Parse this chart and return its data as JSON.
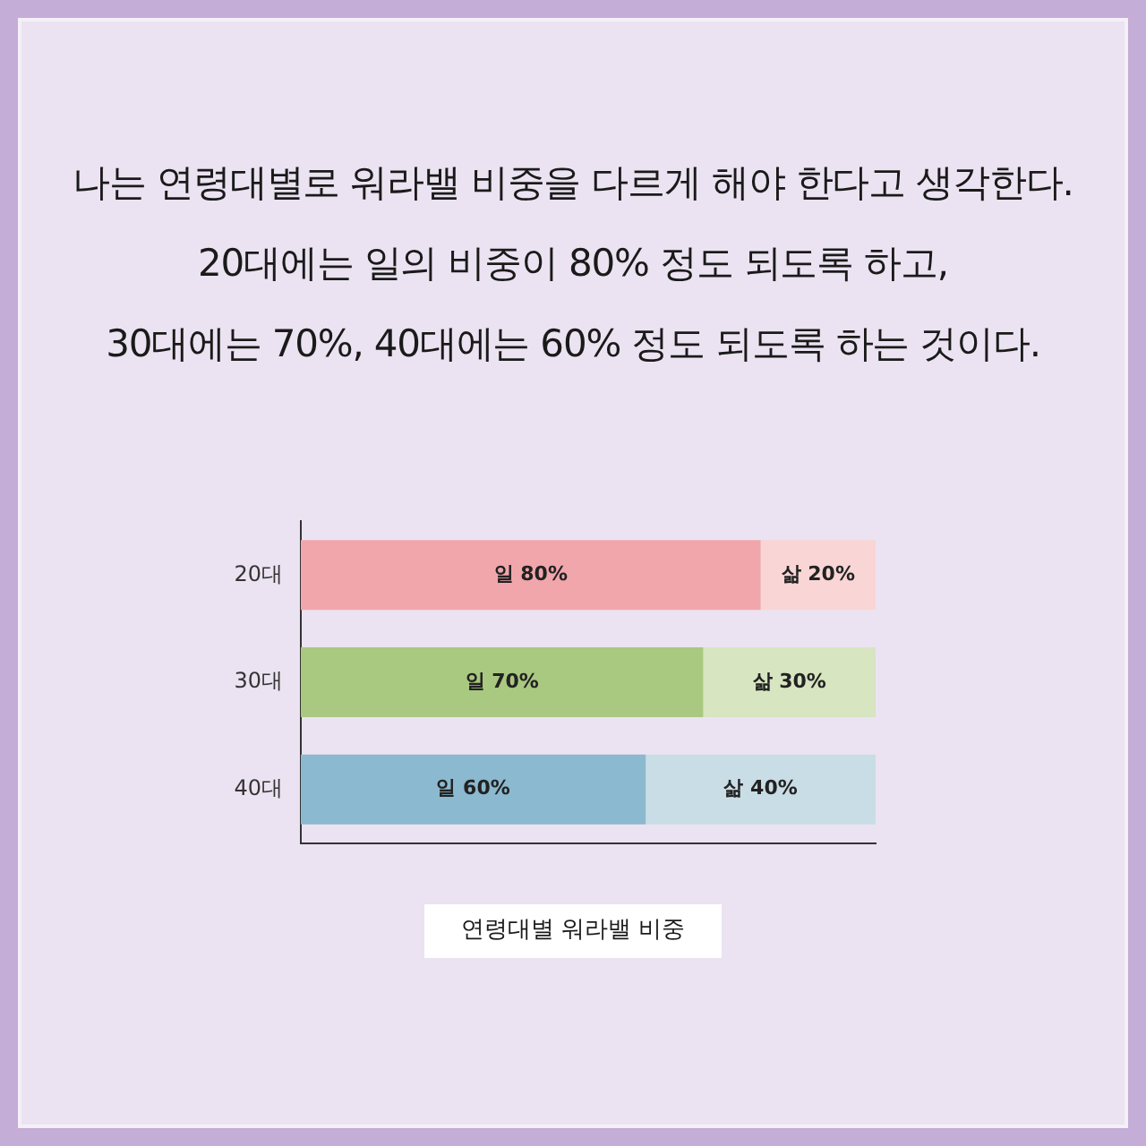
{
  "chart_data": {
    "type": "bar",
    "orientation": "horizontal",
    "stacked": true,
    "title": "연령대별 워라밸 비중",
    "subtitle": "나는 연령대별로 워라밸 비중을 다르게 해야 한다고 생각한다.\n20대에는 일의 비중이 80% 정도 되도록 하고,\n30대에는 70%, 40대에는 60% 정도 되도록 하는 것이다.",
    "categories": [
      "20대",
      "30대",
      "40대"
    ],
    "series": [
      {
        "values": [
          80,
          70,
          60
        ],
        "colors": [
          "#f1a6ab",
          "#a9c880",
          "#8bb9cf"
        ],
        "value_labels": [
          "일 80%",
          "일 70%",
          "일 60%"
        ]
      },
      {
        "values": [
          20,
          30,
          40
        ],
        "colors": [
          "#f9d5d5",
          "#d7e5c1",
          "#c9dde6"
        ],
        "value_labels": [
          "삶 20%",
          "삶 30%",
          "삶 40%"
        ]
      }
    ],
    "xlim": [
      0,
      100
    ],
    "tick_labels": "y",
    "grid": false,
    "legend": false
  }
}
